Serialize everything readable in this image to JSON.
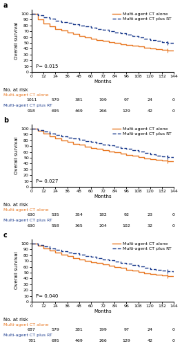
{
  "chart_data": [
    {
      "type": "step",
      "title": "a",
      "annotation": "P= 0.015",
      "xlabel": "Months",
      "ylabel": "Overall survival",
      "xlim": [
        0,
        144
      ],
      "ylim": [
        0,
        107
      ],
      "xticks": [
        0,
        12,
        24,
        36,
        48,
        60,
        72,
        84,
        96,
        108,
        120,
        132,
        144
      ],
      "yticks": [
        0,
        10,
        20,
        30,
        40,
        50,
        60,
        70,
        80,
        90,
        100
      ],
      "legend": "upper right",
      "series": [
        {
          "name": "Multi-agent CT alone",
          "color": "#E87722",
          "line_style": "solid",
          "x": [
            0,
            6,
            12,
            18,
            24,
            30,
            36,
            42,
            48,
            54,
            60,
            66,
            72,
            78,
            84,
            90,
            96,
            102,
            108,
            114,
            120,
            126,
            132,
            138,
            144
          ],
          "values": [
            100,
            90,
            83,
            78,
            74,
            71,
            68,
            65,
            62,
            60,
            57,
            55,
            53,
            51,
            50,
            48,
            46,
            45,
            44,
            42,
            41,
            39,
            38,
            37,
            37
          ],
          "censored_x": [
            138
          ],
          "censored_y": [
            37
          ]
        },
        {
          "name": "Multi-agent CT plus RT",
          "color": "#1A3A8C",
          "line_style": "dashed",
          "x": [
            0,
            6,
            12,
            18,
            24,
            30,
            36,
            42,
            48,
            54,
            60,
            66,
            72,
            78,
            84,
            90,
            96,
            102,
            108,
            114,
            120,
            126,
            132,
            138,
            144
          ],
          "values": [
            100,
            97,
            94,
            91,
            88,
            86,
            84,
            82,
            80,
            78,
            76,
            74,
            72,
            70,
            68,
            66,
            64,
            62,
            60,
            57,
            55,
            53,
            51,
            50,
            50
          ],
          "censored_x": [
            138
          ],
          "censored_y": [
            50
          ]
        }
      ],
      "at_risk": {
        "title": "No. at risk",
        "x": [
          0,
          24,
          48,
          72,
          96,
          120,
          144
        ],
        "rows": [
          {
            "name": "Multi-agent CT alone",
            "values": [
              1011,
              579,
              381,
              199,
              97,
              24,
              0
            ]
          },
          {
            "name": "Multi-agent CT plus RT",
            "values": [
              918,
              695,
              469,
              266,
              129,
              42,
              0
            ]
          }
        ]
      }
    },
    {
      "type": "step",
      "title": "b",
      "annotation": "P= 0.027",
      "xlabel": "Months",
      "ylabel": "Overall survival",
      "xlim": [
        0,
        144
      ],
      "ylim": [
        0,
        107
      ],
      "xticks": [
        0,
        12,
        24,
        36,
        48,
        60,
        72,
        84,
        96,
        108,
        120,
        132,
        144
      ],
      "yticks": [
        0,
        10,
        20,
        30,
        40,
        50,
        60,
        70,
        80,
        90,
        100
      ],
      "legend": "upper right",
      "series": [
        {
          "name": "Multi-agent CT alone",
          "color": "#E87722",
          "line_style": "solid",
          "x": [
            0,
            6,
            12,
            18,
            24,
            30,
            36,
            42,
            48,
            54,
            60,
            66,
            72,
            78,
            84,
            90,
            96,
            102,
            108,
            114,
            120,
            126,
            132,
            138,
            144
          ],
          "values": [
            100,
            96,
            91,
            87,
            83,
            80,
            77,
            74,
            72,
            69,
            67,
            65,
            63,
            61,
            59,
            57,
            55,
            53,
            51,
            49,
            47,
            46,
            45,
            44,
            44
          ],
          "censored_x": [
            138
          ],
          "censored_y": [
            44
          ]
        },
        {
          "name": "Multi-agent CT plus RT",
          "color": "#1A3A8C",
          "line_style": "dashed",
          "x": [
            0,
            6,
            12,
            18,
            24,
            30,
            36,
            42,
            48,
            54,
            60,
            66,
            72,
            78,
            84,
            90,
            96,
            102,
            108,
            114,
            120,
            126,
            132,
            138,
            144
          ],
          "values": [
            100,
            98,
            95,
            92,
            89,
            87,
            85,
            83,
            81,
            79,
            77,
            75,
            73,
            71,
            69,
            67,
            65,
            63,
            61,
            58,
            56,
            54,
            52,
            51,
            50
          ],
          "censored_x": [
            138
          ],
          "censored_y": [
            51
          ]
        }
      ],
      "at_risk": {
        "title": "No. at risk",
        "x": [
          0,
          24,
          48,
          72,
          96,
          120,
          144
        ],
        "rows": [
          {
            "name": "Multi-agent CT alone",
            "values": [
              630,
              535,
              354,
              182,
              92,
              23,
              0
            ]
          },
          {
            "name": "Multi-agent CT plus RT",
            "values": [
              630,
              558,
              365,
              204,
              102,
              32,
              0
            ]
          }
        ]
      }
    },
    {
      "type": "step",
      "title": "c",
      "annotation": "P= 0.040",
      "xlabel": "Months",
      "ylabel": "Overall survival",
      "xlim": [
        0,
        144
      ],
      "ylim": [
        0,
        107
      ],
      "xticks": [
        0,
        12,
        24,
        36,
        48,
        60,
        72,
        84,
        96,
        108,
        120,
        132,
        144
      ],
      "yticks": [
        0,
        10,
        20,
        30,
        40,
        50,
        60,
        70,
        80,
        90,
        100
      ],
      "legend": "upper right",
      "series": [
        {
          "name": "Multi-agent CT alone",
          "color": "#E87722",
          "line_style": "solid",
          "x": [
            0,
            6,
            12,
            18,
            24,
            30,
            36,
            42,
            48,
            54,
            60,
            66,
            72,
            78,
            84,
            90,
            96,
            102,
            108,
            114,
            120,
            126,
            132,
            138,
            144
          ],
          "values": [
            100,
            96,
            92,
            88,
            84,
            81,
            78,
            75,
            73,
            70,
            68,
            66,
            64,
            62,
            60,
            58,
            55,
            53,
            51,
            49,
            48,
            46,
            45,
            44,
            44
          ],
          "censored_x": [
            138
          ],
          "censored_y": [
            44
          ]
        },
        {
          "name": "Multi-agent CT plus RT",
          "color": "#1A3A8C",
          "line_style": "dashed",
          "x": [
            0,
            6,
            12,
            18,
            24,
            30,
            36,
            42,
            48,
            54,
            60,
            66,
            72,
            78,
            84,
            90,
            96,
            102,
            108,
            114,
            120,
            126,
            132,
            138,
            144
          ],
          "values": [
            100,
            98,
            95,
            92,
            89,
            87,
            85,
            83,
            81,
            79,
            77,
            75,
            73,
            71,
            69,
            67,
            65,
            63,
            61,
            58,
            56,
            55,
            53,
            52,
            50
          ],
          "censored_x": [
            138
          ],
          "censored_y": [
            52
          ]
        }
      ],
      "at_risk": {
        "title": "No. at risk",
        "x": [
          0,
          24,
          48,
          72,
          96,
          120,
          144
        ],
        "rows": [
          {
            "name": "Multi-agent CT alone",
            "values": [
              687,
              579,
              381,
              199,
              97,
              24,
              0
            ]
          },
          {
            "name": "Multi-agent CT plus RT",
            "values": [
              781,
              695,
              469,
              266,
              129,
              42,
              0
            ]
          }
        ]
      }
    }
  ]
}
